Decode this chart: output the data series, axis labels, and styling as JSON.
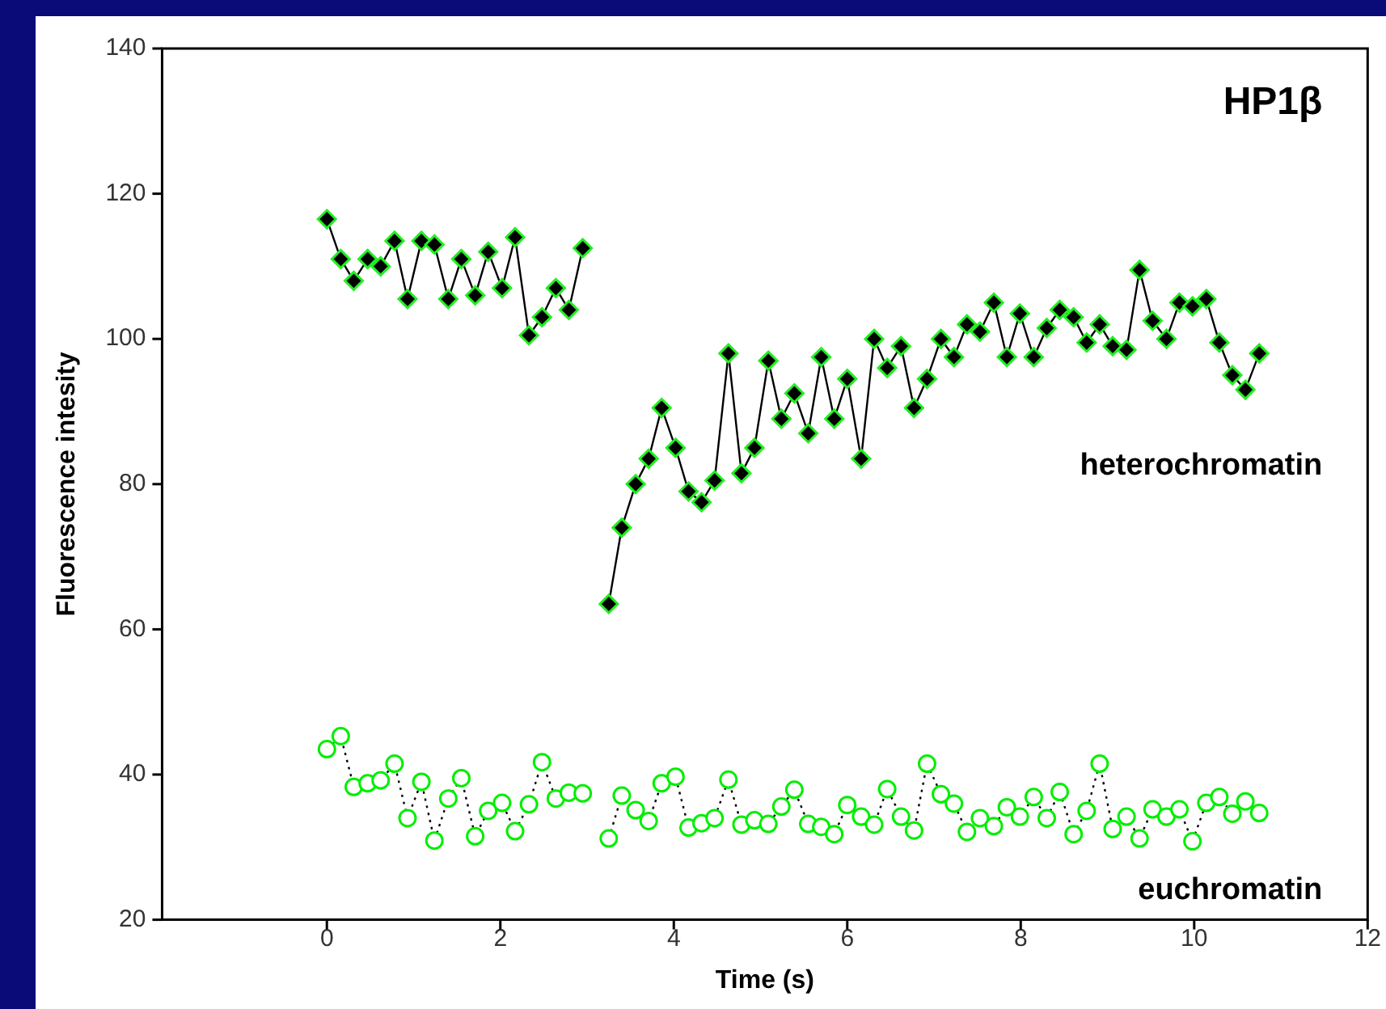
{
  "chart_data": {
    "type": "line",
    "xlabel": "Time (s)",
    "ylabel": "Fluorescence intesity",
    "annotations": [
      "HP1β"
    ],
    "xlim": [
      -1.9,
      12
    ],
    "xticks": [
      0,
      2,
      4,
      6,
      8,
      10,
      12
    ],
    "ylim": [
      20,
      140
    ],
    "yticks": [
      20,
      40,
      60,
      80,
      100,
      120,
      140
    ],
    "grid": false,
    "legend": false,
    "series": [
      {
        "name": "heterochromatin",
        "color": "#000000",
        "marker": "diamond",
        "line_style": "solid",
        "x": [
          0,
          0.16,
          0.31,
          0.47,
          0.62,
          0.78,
          0.93,
          1.09,
          1.24,
          1.4,
          1.55,
          1.71,
          1.86,
          2.02,
          2.17,
          2.33,
          2.48,
          2.64,
          2.79,
          2.95,
          3.1,
          3.25,
          3.4,
          3.56,
          3.71,
          3.86,
          4.02,
          4.17,
          4.32,
          4.47,
          4.63,
          4.78,
          4.93,
          5.09,
          5.24,
          5.39,
          5.55,
          5.7,
          5.85,
          6,
          6.16,
          6.31,
          6.46,
          6.62,
          6.77,
          6.92,
          7.08,
          7.23,
          7.38,
          7.53,
          7.69,
          7.84,
          7.99,
          8.15,
          8.3,
          8.45,
          8.61,
          8.76,
          8.91,
          9.06,
          9.22,
          9.37,
          9.52,
          9.68,
          9.83,
          9.98,
          10.14,
          10.29,
          10.44,
          10.59,
          10.75
        ],
        "values": [
          116.5,
          111,
          108,
          111,
          110,
          113.5,
          105.5,
          113.5,
          113,
          105.5,
          111,
          106,
          112,
          107,
          114,
          100.5,
          103,
          107,
          104,
          112.5,
          null,
          63.5,
          74,
          80,
          83.5,
          90.5,
          85,
          79,
          77.5,
          80.5,
          98,
          81.5,
          85,
          97,
          89,
          92.5,
          87,
          97.5,
          89,
          94.5,
          83.5,
          100,
          96,
          99,
          90.5,
          94.5,
          100,
          97.5,
          102,
          101,
          105,
          97.5,
          103.5,
          97.5,
          101.5,
          104,
          103,
          99.5,
          102,
          99,
          98.5,
          109.5,
          102.5,
          100,
          105,
          104.5,
          105.5,
          99.5,
          95,
          93,
          98
        ]
      },
      {
        "name": "euchromatin",
        "color": "#00ee00",
        "marker": "circle",
        "line_style": "dotted",
        "x": [
          0,
          0.16,
          0.31,
          0.47,
          0.62,
          0.78,
          0.93,
          1.09,
          1.24,
          1.4,
          1.55,
          1.71,
          1.86,
          2.02,
          2.17,
          2.33,
          2.48,
          2.64,
          2.79,
          2.95,
          3.1,
          3.25,
          3.4,
          3.56,
          3.71,
          3.86,
          4.02,
          4.17,
          4.32,
          4.47,
          4.63,
          4.78,
          4.93,
          5.09,
          5.24,
          5.39,
          5.55,
          5.7,
          5.85,
          6,
          6.16,
          6.31,
          6.46,
          6.62,
          6.77,
          6.92,
          7.08,
          7.23,
          7.38,
          7.53,
          7.69,
          7.84,
          7.99,
          8.15,
          8.3,
          8.45,
          8.61,
          8.76,
          8.91,
          9.06,
          9.22,
          9.37,
          9.52,
          9.68,
          9.83,
          9.98,
          10.14,
          10.29,
          10.44,
          10.59,
          10.75
        ],
        "values": [
          43.5,
          45.3,
          38.3,
          38.8,
          39.2,
          41.5,
          34,
          39,
          30.9,
          36.7,
          39.5,
          31.5,
          35,
          36.1,
          32.2,
          35.9,
          41.7,
          36.7,
          37.5,
          37.4,
          null,
          31.2,
          37.1,
          35.1,
          33.6,
          38.8,
          39.7,
          32.7,
          33.3,
          34,
          39.3,
          33.1,
          33.7,
          33.2,
          35.6,
          37.9,
          33.2,
          32.8,
          31.8,
          35.8,
          34.2,
          33.1,
          38,
          34.2,
          32.3,
          41.5,
          37.3,
          36,
          32.1,
          34,
          32.9,
          35.5,
          34.2,
          36.9,
          34,
          37.6,
          31.8,
          35,
          41.5,
          32.5,
          34.2,
          31.2,
          35.2,
          34.2,
          35.2,
          30.8,
          36.1,
          36.9,
          34.6,
          36.3,
          34.7
        ]
      }
    ]
  }
}
